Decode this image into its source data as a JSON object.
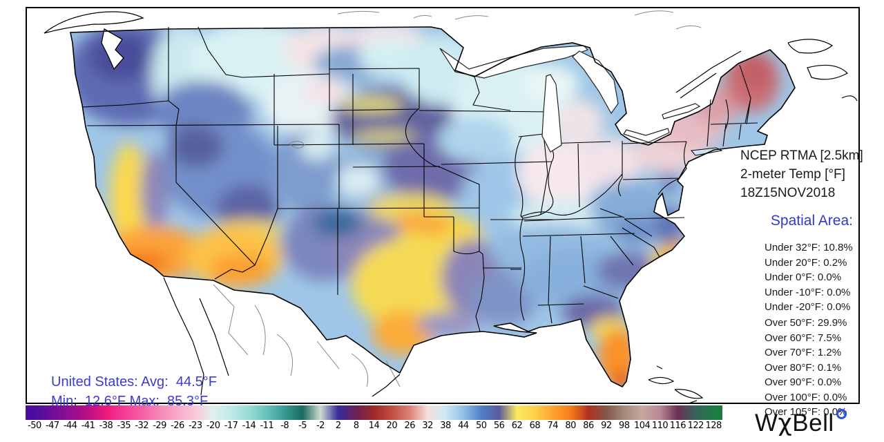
{
  "title_block": {
    "line1": "NCEP RTMA [2.5km]",
    "line2": "2-meter Temp [°F]",
    "line3": "18Z15NOV2018"
  },
  "spatial": {
    "heading": "Spatial Area:",
    "under": [
      "Under 32°F: 10.8%",
      "Under 20°F: 0.2%",
      "Under 0°F: 0.0%",
      "Under -10°F: 0.0%",
      "Under -20°F: 0.0%"
    ],
    "over": [
      "Over 50°F: 29.9%",
      "Over 60°F: 7.5%",
      "Over 70°F: 1.2%",
      "Over 80°F: 0.1%",
      "Over 90°F: 0.0%",
      "Over 100°F: 0.0%",
      "Over 105°F: 0.0%"
    ]
  },
  "us_stats": {
    "line1": "United States: Avg:  44.5°F",
    "line2": "Min:  12.6°F Max:  85.3°F",
    "avg_f": 44.5,
    "min_f": 12.6,
    "max_f": 85.3
  },
  "colorbar": {
    "ticks": [
      "-50",
      "-47",
      "-44",
      "-41",
      "-38",
      "-35",
      "-32",
      "-29",
      "-26",
      "-23",
      "-20",
      "-17",
      "-14",
      "-11",
      "-8",
      "-5",
      "-2",
      "2",
      "8",
      "14",
      "20",
      "26",
      "32",
      "38",
      "44",
      "50",
      "56",
      "62",
      "68",
      "74",
      "80",
      "86",
      "92",
      "98",
      "104",
      "110",
      "116",
      "122",
      "128"
    ],
    "colors": [
      "#4a0e9e",
      "#6e0e9a",
      "#930e90",
      "#b80f80",
      "#ed1a7e",
      "#f43b95",
      "#f560a6",
      "#f687b8",
      "#f8a9c9",
      "#fac9da",
      "#dff0ee",
      "#bfeae6",
      "#98dcd6",
      "#66c2ba",
      "#379b92",
      "#1d6a5e",
      "#cfd9d3",
      "#362b9b",
      "#6d2257",
      "#9d2828",
      "#c24e42",
      "#dc8277",
      "#f3e1de",
      "#cfe8f2",
      "#92c1e6",
      "#4f7ec9",
      "#5a5a9e",
      "#f7ea5f",
      "#fed04b",
      "#fda32f",
      "#f87d1d",
      "#b23122",
      "#835648",
      "#a38a7c",
      "#c7a89e",
      "#b98a95",
      "#6d3054",
      "#36635a",
      "#1f7a46"
    ]
  },
  "logo": {
    "text_w": "W",
    "text_chi": "χ",
    "text_bell": "Bell"
  },
  "colors": {
    "accent_blue": "#3535cf",
    "stats_blue": "#3b3bd4",
    "text": "#1a1a1a",
    "map_border": "#000000"
  }
}
